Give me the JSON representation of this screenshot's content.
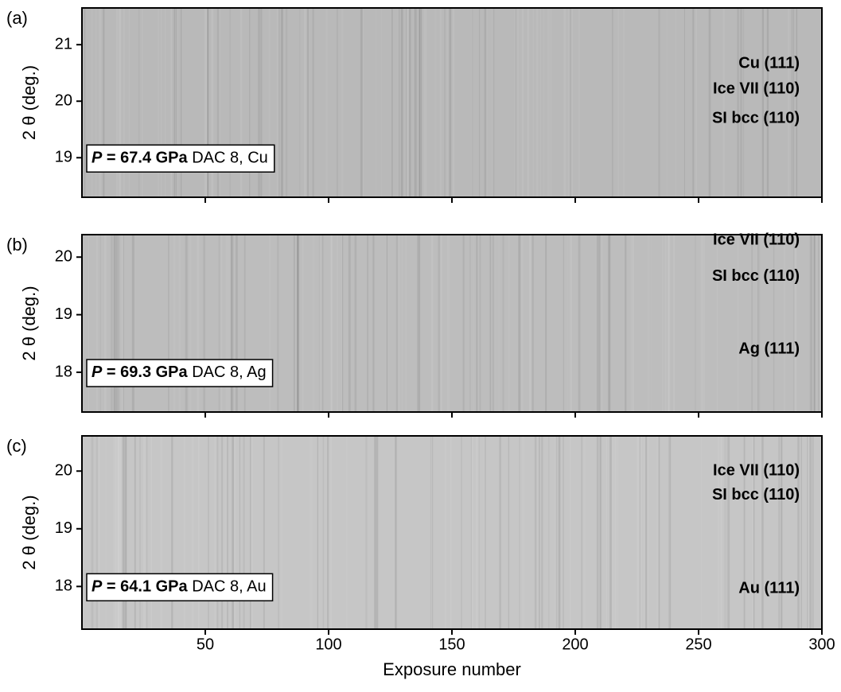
{
  "chart_data": [
    {
      "type": "image",
      "panel_label": "(a)",
      "ylabel": "2 θ (deg.)",
      "background": "#b9b9b9",
      "xlim": [
        0,
        300
      ],
      "xticks": [
        50,
        100,
        150,
        200,
        250,
        300
      ],
      "ylim": [
        18.3,
        21.65
      ],
      "yticks": [
        19,
        20,
        21
      ],
      "info": {
        "symbol": "P",
        "pressure": " = 67.4 GPa",
        "cell": " DAC 8, Cu"
      },
      "lines": [
        {
          "name": "Cu (111)",
          "value": 20.66,
          "color": "#2ee52e",
          "band_color": "#1a1a1a"
        },
        {
          "name": "Ice VII (110)",
          "value": 20.21,
          "color": "#33e6f2",
          "band_color": "#151515"
        },
        {
          "name": "SI bcc (110)",
          "value": 19.69,
          "color": "#ece424",
          "band_color": "#8c8c8c"
        }
      ]
    },
    {
      "type": "image",
      "panel_label": "(b)",
      "ylabel": "2 θ (deg.)",
      "background": "#bdbdbd",
      "xlim": [
        0,
        300
      ],
      "xticks": [
        50,
        100,
        150,
        200,
        250,
        300
      ],
      "ylim": [
        17.31,
        20.39
      ],
      "yticks": [
        18,
        19,
        20
      ],
      "info": {
        "symbol": "P",
        "pressure": " = 69.3 GPa",
        "cell": " DAC 8, Ag"
      },
      "lines": [
        {
          "name": "Ice VII (110)",
          "value": 20.29,
          "color": "#33e6f2",
          "band_color": "#262626"
        },
        {
          "name": "SI bcc (110)",
          "value": 19.66,
          "color": "#ece424",
          "band_color": "#8a8a8a"
        },
        {
          "name": "Ag (111)",
          "value": 18.4,
          "color": "#2ee52e",
          "band_color": "#000000"
        }
      ]
    },
    {
      "type": "image",
      "panel_label": "(c)",
      "ylabel": "2 θ (deg.)",
      "xlabel": "Exposure number",
      "background": "#c6c6c6",
      "xlim": [
        0,
        300
      ],
      "xticks": [
        50,
        100,
        150,
        200,
        250,
        300
      ],
      "ylim": [
        17.26,
        20.61
      ],
      "yticks": [
        18,
        19,
        20
      ],
      "info": {
        "symbol": "P",
        "pressure": " = 64.1 GPa",
        "cell": " DAC 8, Au"
      },
      "lines": [
        {
          "name": "Ice VII (110)",
          "value": 20.0,
          "color": "#33e6f2",
          "band_color": "#2a2a2a"
        },
        {
          "name": "SI bcc (110)",
          "value": 19.58,
          "color": "#ece424",
          "band_color": "#a0a0a0"
        },
        {
          "name": "Au (111)",
          "value": 17.96,
          "color": "#2ee52e",
          "band_color": "#000000"
        }
      ]
    }
  ]
}
